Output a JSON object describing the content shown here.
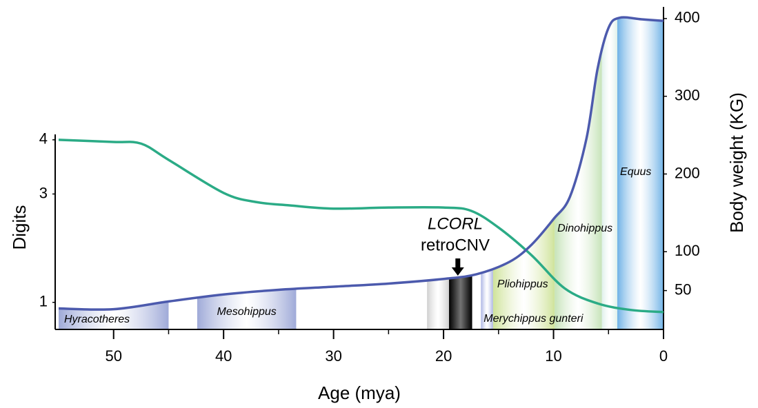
{
  "chart_data": {
    "type": "line",
    "xlabel": "Age (mya)",
    "ylabel": "Digits",
    "y2label": "Body weight (KG)",
    "xlim": [
      55,
      0
    ],
    "xticks": [
      50,
      40,
      30,
      20,
      10,
      0
    ],
    "xminor": [
      45,
      35,
      25,
      15,
      5
    ],
    "ylim": [
      0.5,
      4.1
    ],
    "yticks": [
      1,
      3,
      4
    ],
    "y2lim": [
      0,
      415
    ],
    "y2ticks": [
      50,
      100,
      200,
      300,
      400
    ],
    "series": [
      {
        "color": "#2bab86",
        "x": [
          55,
          50,
          47.5,
          45,
          40,
          37,
          34,
          30,
          25,
          20,
          17.5,
          15,
          12,
          9,
          6,
          3,
          0
        ],
        "values": [
          4.0,
          3.96,
          3.93,
          3.63,
          3.02,
          2.85,
          2.79,
          2.73,
          2.75,
          2.75,
          2.69,
          2.38,
          1.87,
          1.26,
          0.98,
          0.86,
          0.82
        ]
      },
      {
        "color": "#4c5aad",
        "axis": "y2",
        "x": [
          55,
          50,
          45,
          40,
          35,
          30,
          25,
          20,
          17,
          14,
          12,
          10,
          8.5,
          7,
          6,
          5,
          4,
          2,
          0
        ],
        "values": [
          27,
          26,
          36,
          45,
          51,
          55,
          59,
          65,
          71,
          87,
          109,
          142,
          171,
          246,
          335,
          388,
          401,
          399,
          397
        ]
      }
    ],
    "periods": [
      {
        "label": "Hyracotheres",
        "start": 55,
        "end": 45,
        "color": "#9faad8"
      },
      {
        "label": "Mesohippus",
        "start": 42.4,
        "end": 33.4,
        "color": "#9faad8"
      },
      {
        "label": null,
        "start": 21.5,
        "end": 19.5,
        "color": "#cfcfcf"
      },
      {
        "label": null,
        "start": 19.5,
        "end": 17.4,
        "color": "#000000"
      },
      {
        "label": "Merychippus gunteri",
        "start": 16.6,
        "end": 15.5,
        "color": "#aab3e4"
      },
      {
        "label": "Pliohippus",
        "start": 15.5,
        "end": 9.9,
        "color": "#cfe39a"
      },
      {
        "label": "Dinohippus",
        "start": 9.9,
        "end": 5.6,
        "color": "#c6e3b8"
      },
      {
        "label": null,
        "start": 5.6,
        "end": 4.2,
        "color": "#dff0ea"
      },
      {
        "label": "Equus",
        "start": 4.2,
        "end": 0,
        "color": "#6fb2e6"
      }
    ],
    "annotation": {
      "line1": "LCORL",
      "line2": "retroCNV",
      "x": 18.7
    }
  }
}
